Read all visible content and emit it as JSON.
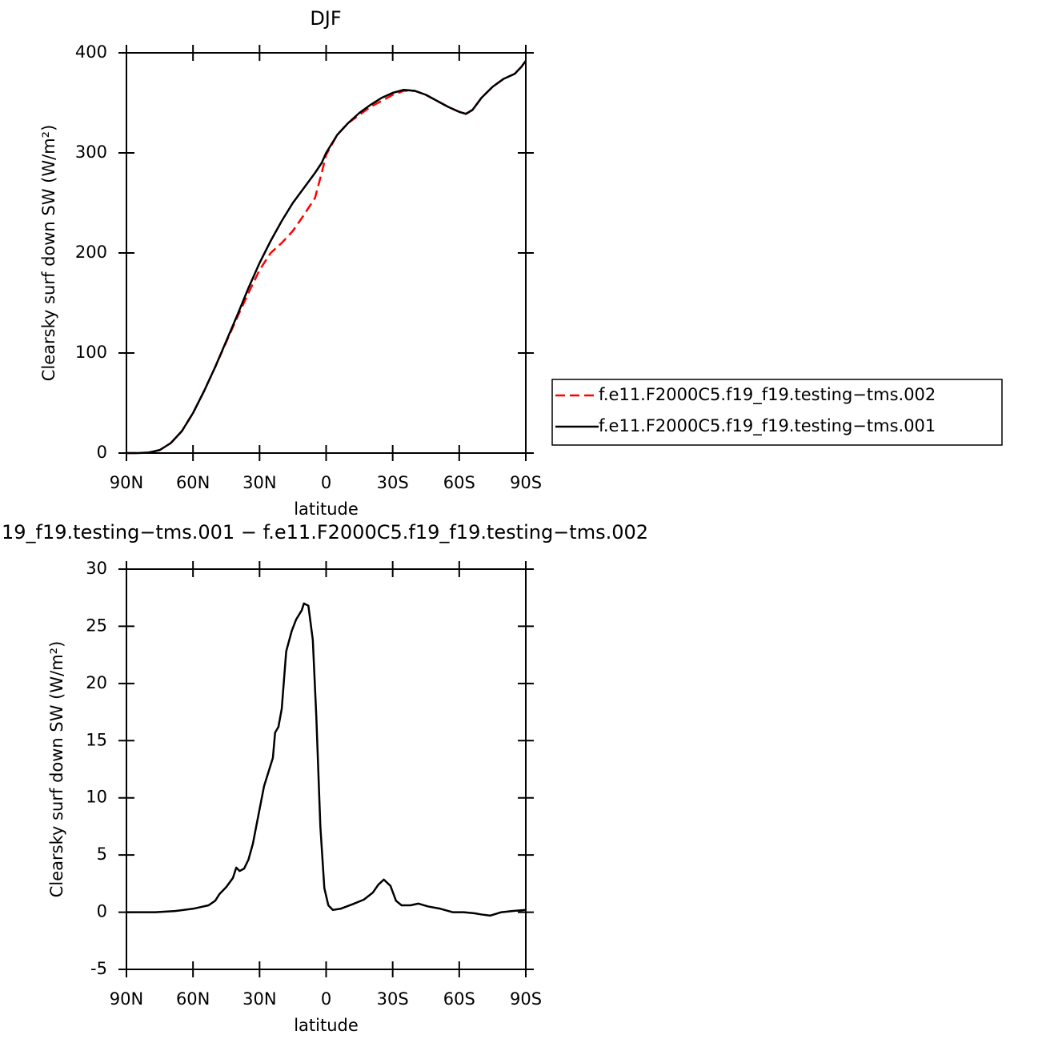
{
  "chart_data": [
    {
      "type": "line",
      "title": "DJF",
      "ylabel": "Clearsky surf down SW (W/m²)",
      "xlabel": "latitude",
      "xlim": [
        90,
        -90
      ],
      "xticks": [
        {
          "value": 90,
          "label": "90N"
        },
        {
          "value": 60,
          "label": "60N"
        },
        {
          "value": 30,
          "label": "30N"
        },
        0,
        {
          "value": -30,
          "label": "30S"
        },
        {
          "value": -60,
          "label": "60S"
        },
        {
          "value": -90,
          "label": "90S"
        }
      ],
      "ylim": [
        0,
        400
      ],
      "yticks": [
        0,
        100,
        200,
        300,
        400
      ],
      "legend": "right",
      "x": [
        90,
        85,
        80,
        75,
        70,
        65,
        60,
        55,
        50,
        45,
        40,
        35,
        30,
        25,
        20,
        15,
        10,
        5,
        2,
        0,
        -5,
        -10,
        -15,
        -20,
        -25,
        -30,
        -35,
        -40,
        -45,
        -50,
        -55,
        -60,
        -63,
        -66,
        -70,
        -75,
        -80,
        -85,
        -88,
        -90
      ],
      "series": [
        {
          "name": "f.e11.F2000C5.f19_f19.testing−tms.002",
          "color": "#ff0000",
          "style": "dashed",
          "values": [
            0,
            0,
            0.5,
            3,
            10,
            22,
            40,
            62,
            86,
            111,
            136,
            160,
            183,
            200,
            210,
            222,
            238,
            255,
            280,
            298,
            318,
            330,
            338,
            346,
            352,
            358,
            362,
            362,
            358,
            352,
            346,
            341,
            339,
            343,
            355,
            366,
            374,
            379,
            386,
            392
          ]
        },
        {
          "name": "f.e11.F2000C5.f19_f19.testing−tms.001",
          "color": "#000000",
          "style": "solid",
          "values": [
            0,
            0,
            0.5,
            3,
            10,
            22,
            40,
            62,
            86,
            112,
            138,
            165,
            190,
            212,
            232,
            250,
            265,
            280,
            290,
            300,
            318,
            330,
            340,
            348,
            355,
            360,
            363,
            362,
            358,
            352,
            346,
            341,
            339,
            343,
            355,
            366,
            374,
            379,
            386,
            392
          ]
        }
      ]
    },
    {
      "type": "line",
      "title": "19_f19.testing−tms.001 − f.e11.F2000C5.f19_f19.testing−tms.002",
      "ylabel": "Clearsky surf down SW (W/m²)",
      "xlabel": "latitude",
      "xlim": [
        90,
        -90
      ],
      "xticks": [
        {
          "value": 90,
          "label": "90N"
        },
        {
          "value": 60,
          "label": "60N"
        },
        {
          "value": 30,
          "label": "30N"
        },
        0,
        {
          "value": -30,
          "label": "30S"
        },
        {
          "value": -60,
          "label": "60S"
        },
        {
          "value": -90,
          "label": "90S"
        }
      ],
      "ylim": [
        -5,
        30
      ],
      "yticks": [
        -5,
        0,
        5,
        10,
        15,
        20,
        25,
        30
      ],
      "color": "#000000",
      "x": [
        90,
        77,
        68,
        60,
        53,
        50,
        48,
        45,
        42,
        40.5,
        39,
        37,
        35,
        33,
        31,
        28,
        24,
        23,
        21.5,
        20,
        18,
        15.5,
        13.5,
        11,
        10,
        8,
        6,
        4.4,
        2.6,
        0.8,
        -1,
        -3,
        -6.5,
        -12,
        -17,
        -21,
        -23.5,
        -26,
        -29,
        -31.5,
        -34,
        -38,
        -41.5,
        -46,
        -51.5,
        -57,
        -62,
        -67,
        -70,
        -74,
        -79,
        -84,
        -90
      ],
      "values": [
        0,
        0,
        0.1,
        0.3,
        0.6,
        1.0,
        1.6,
        2.2,
        3.0,
        3.9,
        3.6,
        3.8,
        4.6,
        6.0,
        8.0,
        11,
        13.5,
        15.7,
        16.2,
        17.8,
        22.8,
        24.6,
        25.6,
        26.4,
        27.0,
        26.8,
        23.8,
        17,
        7.5,
        2.1,
        0.6,
        0.2,
        0.3,
        0.7,
        1.1,
        1.7,
        2.4,
        2.85,
        2.3,
        1.0,
        0.6,
        0.6,
        0.75,
        0.5,
        0.3,
        0,
        0,
        -0.1,
        -0.2,
        -0.3,
        0,
        0.1,
        0.2
      ]
    }
  ]
}
